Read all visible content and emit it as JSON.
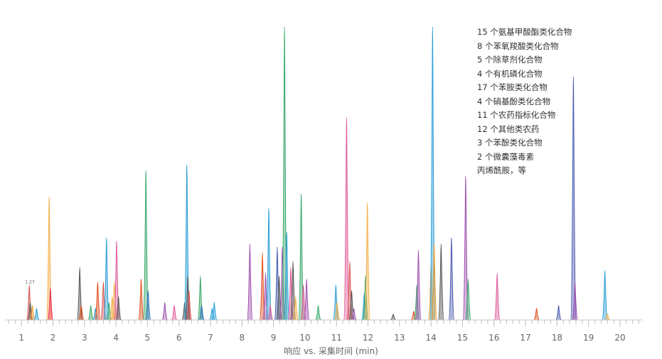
{
  "chart_data": {
    "type": "line",
    "title": "",
    "xlabel": "响应 vs. 采集时间 (min)",
    "ylabel": "",
    "xlim": [
      0.5,
      20.7
    ],
    "ylim": [
      0,
      1.0
    ],
    "x_ticks": [
      1,
      2,
      3,
      4,
      5,
      6,
      7,
      8,
      9,
      10,
      11,
      12,
      13,
      14,
      15,
      16,
      17,
      18,
      19,
      20
    ],
    "grid": false,
    "legend_position": "top-right",
    "annotations": [
      {
        "text": "1.27",
        "x": 1.27,
        "y": 0.12
      }
    ],
    "compound_classes": [
      "15 个氨基甲酸酯类化合物",
      "8 个苯氧羧酸类化合物",
      "5 个除草剂化合物",
      "4 个有机磷化合物",
      "17 个苯胺类化合物",
      "4 个硝基酚类化合物",
      "11 个农药指标化合物",
      "12 个其他类农药",
      "3 个苯酚类化合物",
      "2 个微囊藻毒素",
      "丙烯酰胺，等"
    ],
    "peaks": [
      {
        "x": 1.25,
        "y": 0.12,
        "color": "#d9534f",
        "w": 0.04
      },
      {
        "x": 1.28,
        "y": 0.06,
        "color": "#555555",
        "w": 0.04
      },
      {
        "x": 1.35,
        "y": 0.05,
        "color": "#f0a030",
        "w": 0.04
      },
      {
        "x": 1.48,
        "y": 0.04,
        "color": "#2a9fd6",
        "w": 0.04
      },
      {
        "x": 1.88,
        "y": 0.42,
        "color": "#f4b04a",
        "w": 0.04
      },
      {
        "x": 1.92,
        "y": 0.11,
        "color": "#e8305a",
        "w": 0.04
      },
      {
        "x": 2.85,
        "y": 0.18,
        "color": "#555555",
        "w": 0.04
      },
      {
        "x": 2.9,
        "y": 0.05,
        "color": "#e05020",
        "w": 0.04
      },
      {
        "x": 3.2,
        "y": 0.05,
        "color": "#3aa86b",
        "w": 0.04
      },
      {
        "x": 3.35,
        "y": 0.04,
        "color": "#2a9fd6",
        "w": 0.04
      },
      {
        "x": 3.42,
        "y": 0.13,
        "color": "#e05020",
        "w": 0.04
      },
      {
        "x": 3.6,
        "y": 0.13,
        "color": "#d9534f",
        "w": 0.04
      },
      {
        "x": 3.7,
        "y": 0.28,
        "color": "#2a9fd6",
        "w": 0.04
      },
      {
        "x": 3.78,
        "y": 0.06,
        "color": "#3aa86b",
        "w": 0.04
      },
      {
        "x": 3.88,
        "y": 0.08,
        "color": "#f4b04a",
        "w": 0.04
      },
      {
        "x": 3.95,
        "y": 0.13,
        "color": "#f4b04a",
        "w": 0.04
      },
      {
        "x": 4.02,
        "y": 0.27,
        "color": "#e05a9a",
        "w": 0.04
      },
      {
        "x": 4.08,
        "y": 0.08,
        "color": "#555555",
        "w": 0.04
      },
      {
        "x": 4.8,
        "y": 0.14,
        "color": "#e05020",
        "w": 0.04
      },
      {
        "x": 4.95,
        "y": 0.51,
        "color": "#3aa86b",
        "w": 0.04
      },
      {
        "x": 5.02,
        "y": 0.1,
        "color": "#2a6fbf",
        "w": 0.04
      },
      {
        "x": 5.55,
        "y": 0.06,
        "color": "#a050b0",
        "w": 0.04
      },
      {
        "x": 5.85,
        "y": 0.05,
        "color": "#e05a9a",
        "w": 0.04
      },
      {
        "x": 6.18,
        "y": 0.06,
        "color": "#555555",
        "w": 0.04
      },
      {
        "x": 6.25,
        "y": 0.53,
        "color": "#2a9fd6",
        "w": 0.04
      },
      {
        "x": 6.28,
        "y": 0.15,
        "color": "#555555",
        "w": 0.04
      },
      {
        "x": 6.32,
        "y": 0.1,
        "color": "#d9534f",
        "w": 0.04
      },
      {
        "x": 6.68,
        "y": 0.15,
        "color": "#3aa86b",
        "w": 0.04
      },
      {
        "x": 6.72,
        "y": 0.05,
        "color": "#2a6fbf",
        "w": 0.04
      },
      {
        "x": 7.05,
        "y": 0.04,
        "color": "#2a9fd6",
        "w": 0.04
      },
      {
        "x": 7.12,
        "y": 0.06,
        "color": "#2a9fd6",
        "w": 0.04
      },
      {
        "x": 8.25,
        "y": 0.26,
        "color": "#a050b0",
        "w": 0.04
      },
      {
        "x": 8.65,
        "y": 0.23,
        "color": "#e05020",
        "w": 0.04
      },
      {
        "x": 8.75,
        "y": 0.16,
        "color": "#a050b0",
        "w": 0.04
      },
      {
        "x": 8.85,
        "y": 0.38,
        "color": "#2a9fd6",
        "w": 0.04
      },
      {
        "x": 8.9,
        "y": 0.05,
        "color": "#e05a9a",
        "w": 0.04
      },
      {
        "x": 9.12,
        "y": 0.25,
        "color": "#4a5ab0",
        "w": 0.04
      },
      {
        "x": 9.18,
        "y": 0.15,
        "color": "#555555",
        "w": 0.04
      },
      {
        "x": 9.28,
        "y": 0.25,
        "color": "#a050b0",
        "w": 0.04
      },
      {
        "x": 9.35,
        "y": 1.0,
        "color": "#3aa86b",
        "w": 0.04
      },
      {
        "x": 9.42,
        "y": 0.3,
        "color": "#2a9fd6",
        "w": 0.04
      },
      {
        "x": 9.55,
        "y": 0.18,
        "color": "#e05a9a",
        "w": 0.04
      },
      {
        "x": 9.62,
        "y": 0.2,
        "color": "#555555",
        "w": 0.04
      },
      {
        "x": 9.7,
        "y": 0.08,
        "color": "#f4b04a",
        "w": 0.04
      },
      {
        "x": 9.88,
        "y": 0.43,
        "color": "#3aa86b",
        "w": 0.04
      },
      {
        "x": 9.95,
        "y": 0.12,
        "color": "#e05a9a",
        "w": 0.04
      },
      {
        "x": 10.05,
        "y": 0.14,
        "color": "#a050b0",
        "w": 0.04
      },
      {
        "x": 10.42,
        "y": 0.05,
        "color": "#3aa86b",
        "w": 0.04
      },
      {
        "x": 10.98,
        "y": 0.12,
        "color": "#2a9fd6",
        "w": 0.04
      },
      {
        "x": 11.02,
        "y": 0.06,
        "color": "#f4b04a",
        "w": 0.04
      },
      {
        "x": 11.32,
        "y": 0.69,
        "color": "#e05a9a",
        "w": 0.04
      },
      {
        "x": 11.42,
        "y": 0.2,
        "color": "#d9534f",
        "w": 0.04
      },
      {
        "x": 11.48,
        "y": 0.1,
        "color": "#555555",
        "w": 0.04
      },
      {
        "x": 11.55,
        "y": 0.04,
        "color": "#a050b0",
        "w": 0.04
      },
      {
        "x": 11.88,
        "y": 0.09,
        "color": "#2a9fd6",
        "w": 0.04
      },
      {
        "x": 11.92,
        "y": 0.15,
        "color": "#3aa86b",
        "w": 0.04
      },
      {
        "x": 11.98,
        "y": 0.4,
        "color": "#f4b04a",
        "w": 0.04
      },
      {
        "x": 12.8,
        "y": 0.02,
        "color": "#555555",
        "w": 0.04
      },
      {
        "x": 13.45,
        "y": 0.03,
        "color": "#e05020",
        "w": 0.04
      },
      {
        "x": 13.55,
        "y": 0.12,
        "color": "#3aa86b",
        "w": 0.04
      },
      {
        "x": 13.6,
        "y": 0.24,
        "color": "#a050b0",
        "w": 0.04
      },
      {
        "x": 14.0,
        "y": 0.19,
        "color": "#f4b04a",
        "w": 0.04
      },
      {
        "x": 14.05,
        "y": 1.0,
        "color": "#2a9fd6",
        "w": 0.04
      },
      {
        "x": 14.1,
        "y": 0.26,
        "color": "#f0a030",
        "w": 0.04
      },
      {
        "x": 14.32,
        "y": 0.26,
        "color": "#555555",
        "w": 0.04
      },
      {
        "x": 14.65,
        "y": 0.28,
        "color": "#4a5ab0",
        "w": 0.04
      },
      {
        "x": 15.1,
        "y": 0.49,
        "color": "#a050b0",
        "w": 0.04
      },
      {
        "x": 15.18,
        "y": 0.14,
        "color": "#3aa86b",
        "w": 0.04
      },
      {
        "x": 16.1,
        "y": 0.16,
        "color": "#e05a9a",
        "w": 0.04
      },
      {
        "x": 17.35,
        "y": 0.04,
        "color": "#e05020",
        "w": 0.04
      },
      {
        "x": 18.05,
        "y": 0.05,
        "color": "#4a5ab0",
        "w": 0.04
      },
      {
        "x": 18.52,
        "y": 0.83,
        "color": "#4a5ab0",
        "w": 0.04
      },
      {
        "x": 18.57,
        "y": 0.13,
        "color": "#a050b0",
        "w": 0.04
      },
      {
        "x": 19.52,
        "y": 0.17,
        "color": "#2a9fd6",
        "w": 0.04
      },
      {
        "x": 19.6,
        "y": 0.02,
        "color": "#f4b04a",
        "w": 0.04
      }
    ]
  }
}
